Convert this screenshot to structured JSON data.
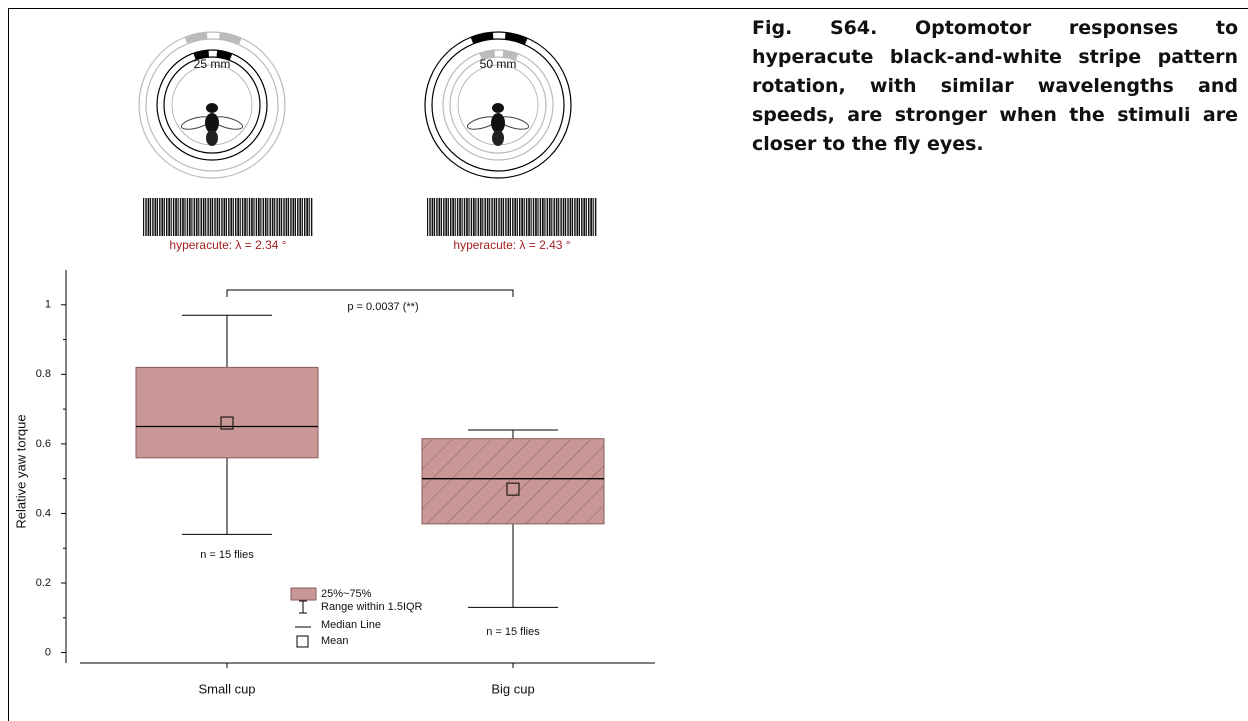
{
  "caption": "Fig. S64. Optomotor responses to hyperacute black-and-white stripe pattern rotation, with similar wavelengths and speeds, are stronger when the stimuli are closer to the fly eyes.",
  "illustrations": [
    {
      "distance": "25 mm",
      "stimulus": "hyperacute: λ = 2.34 °"
    },
    {
      "distance": "50 mm",
      "stimulus": "hyperacute: λ = 2.43 °"
    }
  ],
  "chart_data": {
    "type": "box",
    "y_label": "Relative yaw torque",
    "categories": [
      "Small cup",
      "Big cup"
    ],
    "boxes": [
      {
        "min": 0.34,
        "q1": 0.56,
        "median": 0.65,
        "q3": 0.82,
        "max": 0.97,
        "mean": 0.66,
        "hatch": false,
        "n_label": "n = 15 flies"
      },
      {
        "min": 0.13,
        "q1": 0.37,
        "median": 0.5,
        "q3": 0.615,
        "max": 0.64,
        "mean": 0.47,
        "hatch": true,
        "n_label": "n = 15 flies"
      }
    ],
    "color": "#c99896",
    "edge_color": "#8a5b59",
    "ylim": [
      -0.03,
      1.1
    ],
    "yticks": [
      0,
      0.2,
      0.4,
      0.6,
      0.8,
      1
    ],
    "annotation": "p = 0.0037 (**)",
    "legend": [
      "25%~75%",
      "Range within 1.5IQR",
      "Median Line",
      "Mean"
    ]
  }
}
